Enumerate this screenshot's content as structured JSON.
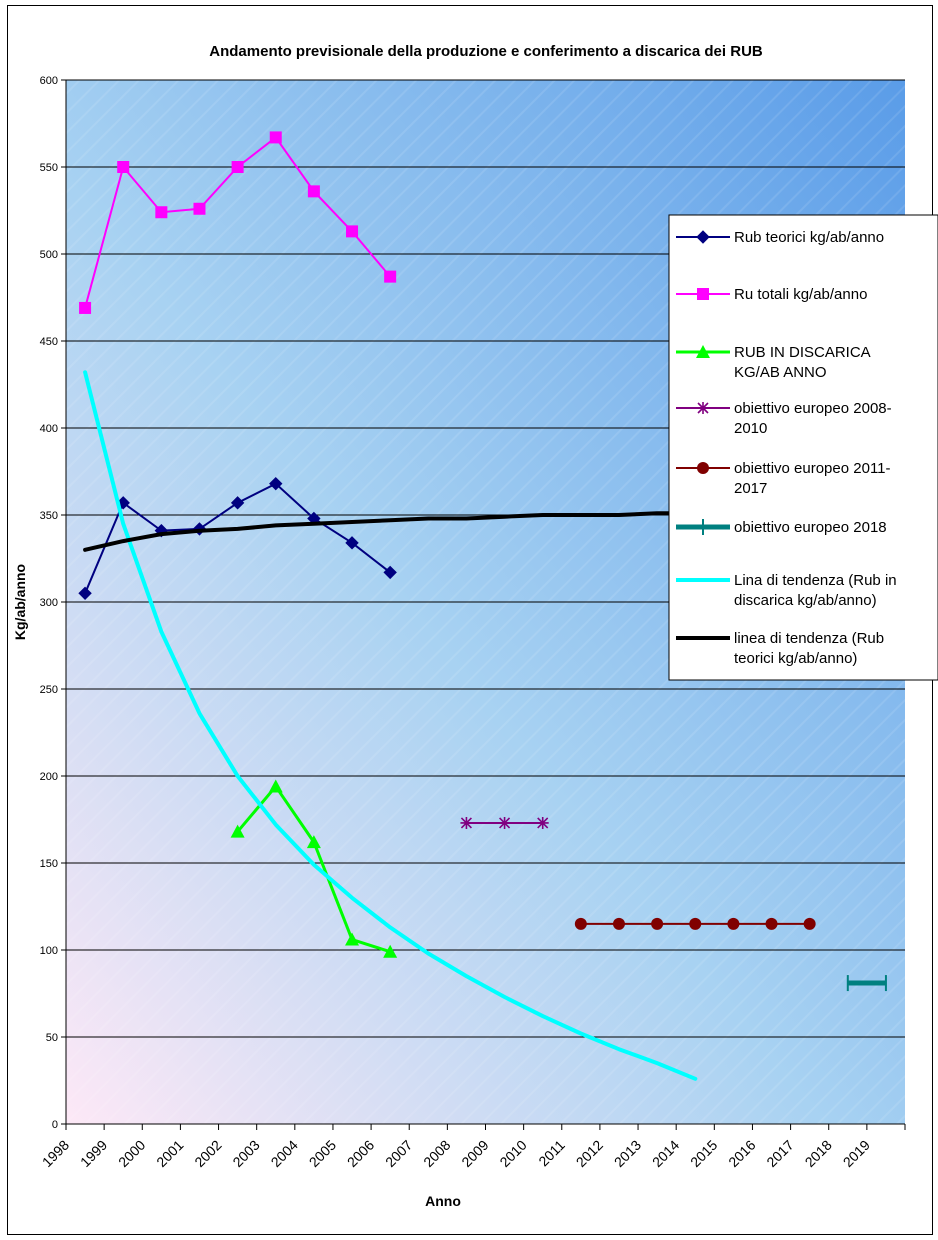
{
  "chart_data": {
    "type": "line",
    "title": "Andamento previsionale della produzione e conferimento a discarica dei RUB",
    "xlabel": "Anno",
    "ylabel": "Kg/ab/anno",
    "ylim": [
      0,
      600
    ],
    "yticks": [
      0,
      50,
      100,
      150,
      200,
      250,
      300,
      350,
      400,
      450,
      500,
      550,
      600
    ],
    "categories": [
      "1998",
      "1999",
      "2000",
      "2001",
      "2002",
      "2003",
      "2004",
      "2005",
      "2006",
      "2007",
      "2008",
      "2009",
      "2010",
      "2011",
      "2012",
      "2013",
      "2014",
      "2015",
      "2016",
      "2017",
      "2018",
      "2019"
    ],
    "grid": true,
    "legend_position": "right",
    "series": [
      {
        "name": "Rub teorici kg/ab/anno",
        "color": "#000080",
        "marker": "diamond",
        "points": [
          [
            0,
            305
          ],
          [
            1,
            357
          ],
          [
            2,
            341
          ],
          [
            3,
            342
          ],
          [
            4,
            357
          ],
          [
            5,
            368
          ],
          [
            6,
            348
          ],
          [
            7,
            334
          ],
          [
            8,
            317
          ]
        ]
      },
      {
        "name": "Ru totali kg/ab/anno",
        "color": "#FF00FF",
        "marker": "square",
        "points": [
          [
            0,
            469
          ],
          [
            1,
            550
          ],
          [
            2,
            524
          ],
          [
            3,
            526
          ],
          [
            4,
            550
          ],
          [
            5,
            567
          ],
          [
            6,
            536
          ],
          [
            7,
            513
          ],
          [
            8,
            487
          ]
        ]
      },
      {
        "name": "RUB IN DISCARICA KG/AB ANNO",
        "color": "#00FF00",
        "marker": "triangle",
        "points": [
          [
            4,
            168
          ],
          [
            5,
            194
          ],
          [
            6,
            162
          ],
          [
            7,
            106
          ],
          [
            8,
            99
          ]
        ]
      },
      {
        "name": "obiettivo europeo 2008-2010",
        "color": "#800080",
        "marker": "star",
        "points": [
          [
            10,
            173
          ],
          [
            11,
            173
          ],
          [
            12,
            173
          ]
        ]
      },
      {
        "name": "obiettivo europeo 2011-2017",
        "color": "#800000",
        "marker": "circle",
        "points": [
          [
            13,
            115
          ],
          [
            14,
            115
          ],
          [
            15,
            115
          ],
          [
            16,
            115
          ],
          [
            17,
            115
          ],
          [
            18,
            115
          ],
          [
            19,
            115
          ]
        ]
      },
      {
        "name": "obiettivo europeo 2018",
        "color": "#008080",
        "marker": "plus",
        "points": [
          [
            20,
            81
          ],
          [
            21,
            81
          ]
        ]
      },
      {
        "name": "Lina di tendenza (Rub in discarica kg/ab/anno)",
        "color": "#00FFFF",
        "marker": "none",
        "points": [
          [
            0,
            432
          ],
          [
            1,
            345
          ],
          [
            2,
            283
          ],
          [
            3,
            236
          ],
          [
            4,
            200
          ],
          [
            5,
            172
          ],
          [
            6,
            149
          ],
          [
            7,
            130
          ],
          [
            8,
            113
          ],
          [
            9,
            98
          ],
          [
            10,
            85
          ],
          [
            11,
            73
          ],
          [
            12,
            62
          ],
          [
            13,
            52
          ],
          [
            14,
            43
          ],
          [
            15,
            35
          ],
          [
            16,
            26
          ]
        ]
      },
      {
        "name": "linea di tendenza (Rub teorici kg/ab/anno)",
        "color": "#000000",
        "marker": "none",
        "points": [
          [
            0,
            330
          ],
          [
            1,
            335
          ],
          [
            2,
            339
          ],
          [
            3,
            341
          ],
          [
            4,
            342
          ],
          [
            5,
            344
          ],
          [
            6,
            345
          ],
          [
            7,
            346
          ],
          [
            8,
            347
          ],
          [
            9,
            348
          ],
          [
            10,
            348
          ],
          [
            11,
            349
          ],
          [
            12,
            350
          ],
          [
            13,
            350
          ],
          [
            14,
            350
          ],
          [
            15,
            351
          ],
          [
            16,
            351
          ],
          [
            17,
            351
          ]
        ]
      }
    ],
    "legend": [
      "Rub teorici kg/ab/anno",
      "Ru totali kg/ab/anno",
      "RUB IN DISCARICA KG/AB ANNO",
      "obiettivo europeo 2008-2010",
      "obiettivo europeo 2011-2017",
      "obiettivo europeo 2018",
      "Lina di tendenza (Rub in discarica kg/ab/anno)",
      "linea di tendenza (Rub teorici kg/ab/anno)"
    ]
  }
}
